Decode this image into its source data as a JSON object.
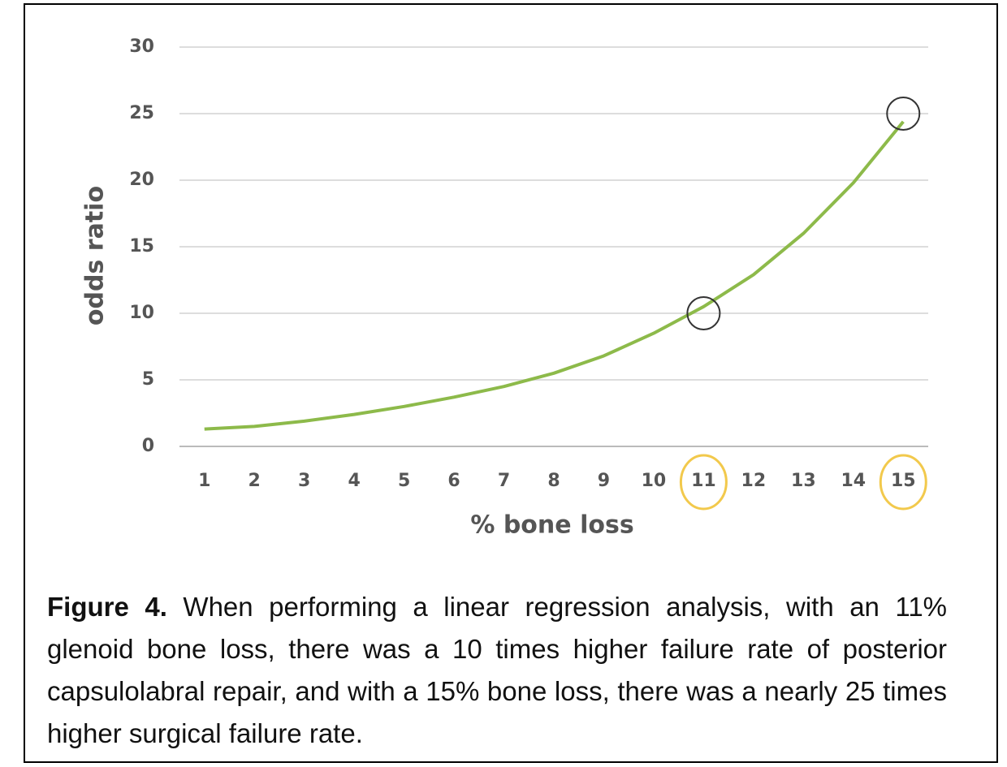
{
  "chart_data": {
    "type": "line",
    "x": [
      1,
      2,
      3,
      4,
      5,
      6,
      7,
      8,
      9,
      10,
      11,
      12,
      13,
      14,
      15
    ],
    "series": [
      {
        "color": "#8dba4a",
        "values": [
          1.3,
          1.5,
          1.9,
          2.4,
          3.0,
          3.7,
          4.5,
          5.5,
          6.8,
          8.5,
          10.5,
          12.9,
          16.0,
          19.8,
          24.4
        ]
      }
    ],
    "xlabel": "% bone loss",
    "ylabel": "odds ratio",
    "xlim": [
      0.5,
      15.5
    ],
    "xticks": [
      1,
      2,
      3,
      4,
      5,
      6,
      7,
      8,
      9,
      10,
      11,
      12,
      13,
      14,
      15
    ],
    "ylim": [
      0,
      30
    ],
    "yticks": [
      0,
      5,
      10,
      15,
      20,
      25,
      30
    ],
    "grid": true,
    "highlights": [
      {
        "x": 11,
        "y": 10
      },
      {
        "x": 15,
        "y": 25
      }
    ]
  },
  "caption": {
    "label": "Figure 4.",
    "text": "When performing a linear regression analysis, with an 11% glenoid bone loss, there was a 10 times higher failure rate of posterior capsulolabral repair, and with a 15% bone loss, there was a nearly 25 times higher surgical failure rate."
  }
}
